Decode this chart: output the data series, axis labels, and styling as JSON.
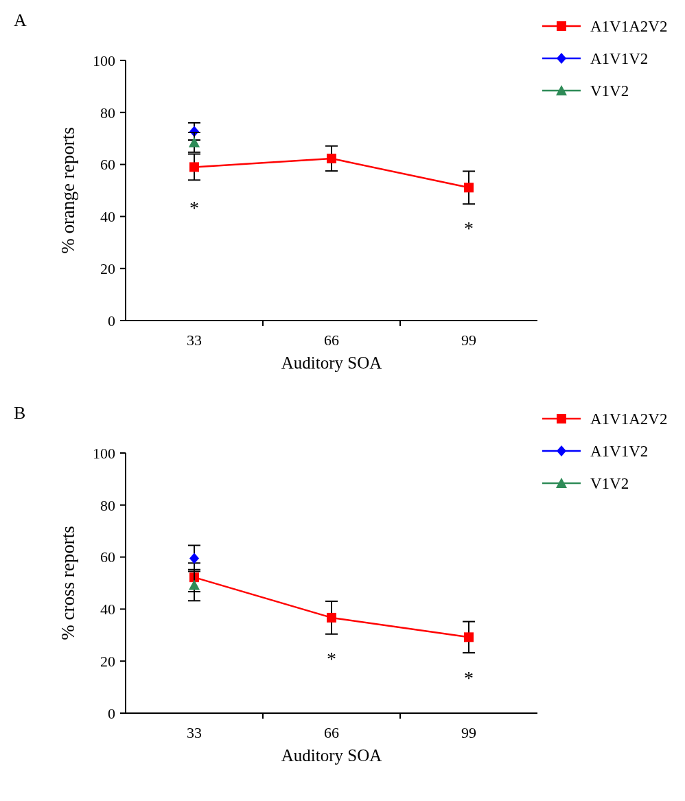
{
  "chart_data": [
    {
      "type": "line",
      "title": "A",
      "xlabel": "Auditory SOA",
      "ylabel": "% orange reports",
      "categories": [
        "33",
        "66",
        "99"
      ],
      "ylim": [
        0,
        100
      ],
      "yticks": [
        0,
        20,
        40,
        60,
        80,
        100
      ],
      "legend": "top right",
      "grid": false,
      "series": [
        {
          "name": "A1V1A2V2",
          "color": "#ff0000",
          "marker": "square",
          "values": [
            59,
            62.3,
            51.1
          ],
          "errors": [
            5,
            4.8,
            6.3
          ]
        },
        {
          "name": "A1V1V2",
          "color": "#0000ff",
          "marker": "diamond",
          "values": [
            72.7,
            null,
            null
          ],
          "errors": [
            3.3,
            null,
            null
          ]
        },
        {
          "name": "V1V2",
          "color": "#2e8b57",
          "marker": "triangle",
          "values": [
            68.5,
            null,
            null
          ],
          "errors": [
            3.8,
            null,
            null
          ]
        }
      ],
      "annotations": [
        {
          "text": "*",
          "x": "33",
          "y": 59
        },
        {
          "text": "*",
          "x": "99",
          "y": 51.1
        }
      ]
    },
    {
      "type": "line",
      "title": "B",
      "xlabel": "Auditory SOA",
      "ylabel": "% cross reports",
      "categories": [
        "33",
        "66",
        "99"
      ],
      "ylim": [
        0,
        100
      ],
      "yticks": [
        0,
        20,
        40,
        60,
        80,
        100
      ],
      "legend": "top right",
      "grid": false,
      "series": [
        {
          "name": "A1V1A2V2",
          "color": "#ff0000",
          "marker": "square",
          "values": [
            52.2,
            36.7,
            29.2
          ],
          "errors": [
            5.5,
            6.3,
            6
          ]
        },
        {
          "name": "A1V1V2",
          "color": "#0000ff",
          "marker": "diamond",
          "values": [
            59.5,
            null,
            null
          ],
          "errors": [
            5,
            null,
            null
          ]
        },
        {
          "name": "V1V2",
          "color": "#2e8b57",
          "marker": "triangle",
          "values": [
            49.2,
            null,
            null
          ],
          "errors": [
            6,
            null,
            null
          ]
        }
      ],
      "annotations": [
        {
          "text": "*",
          "x": "66",
          "y": 36.7
        },
        {
          "text": "*",
          "x": "99",
          "y": 29.2
        }
      ]
    }
  ]
}
